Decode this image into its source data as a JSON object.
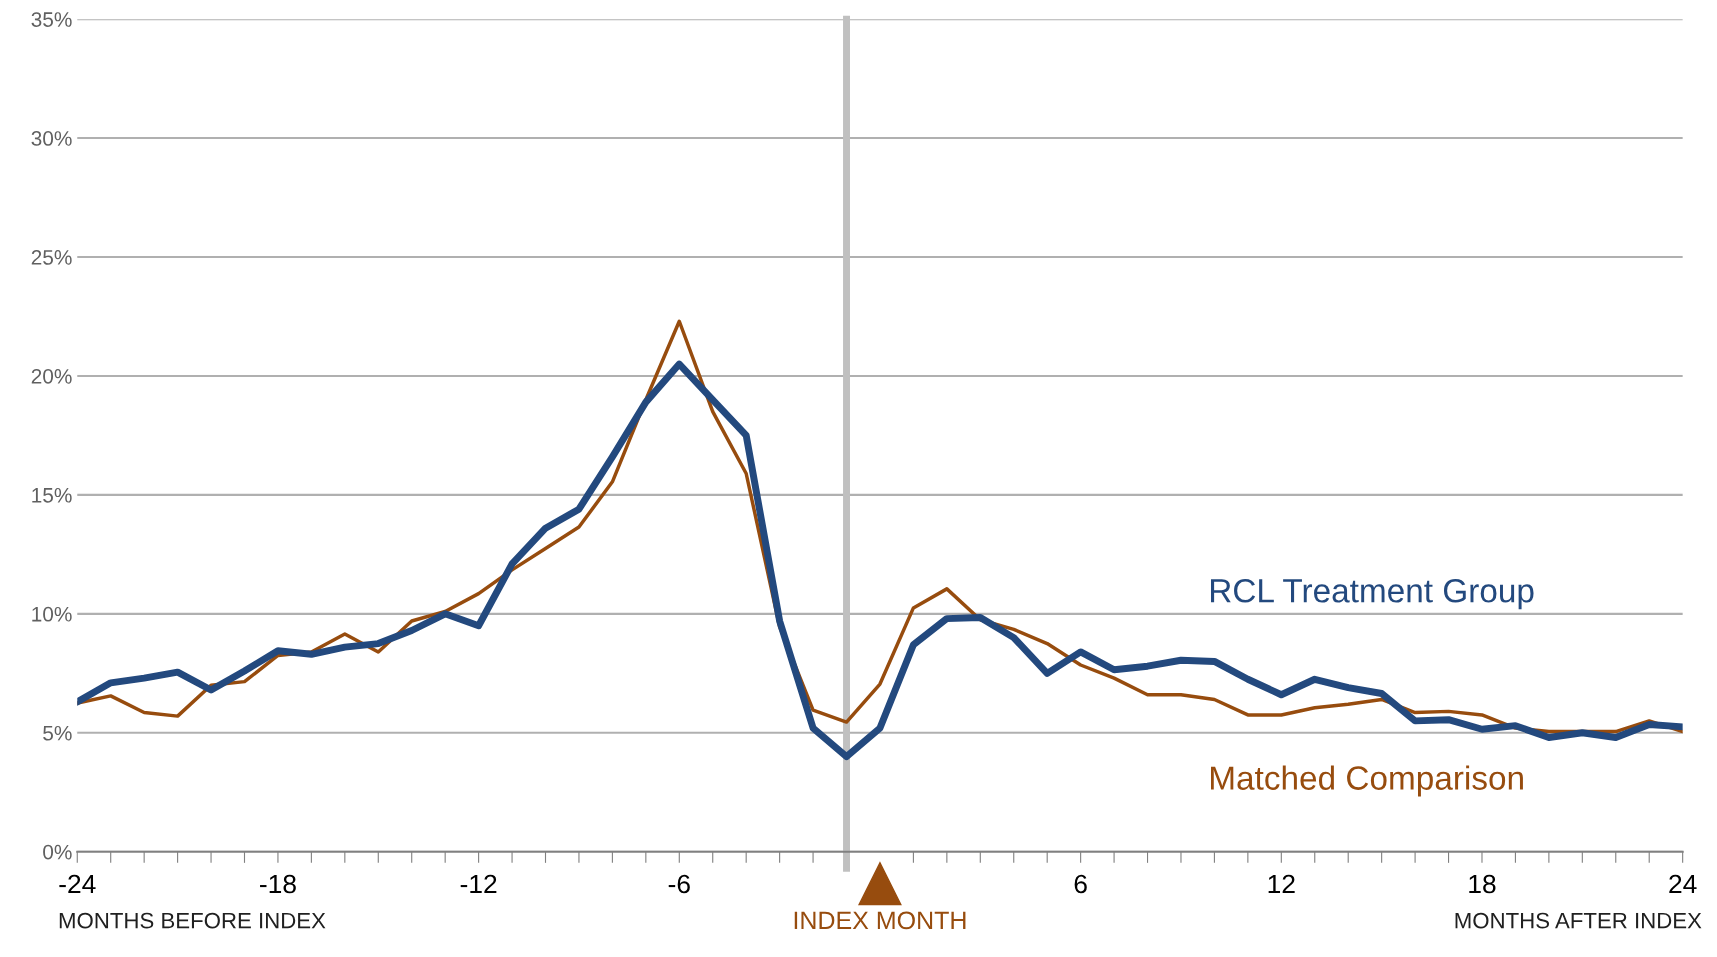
{
  "chart_data": {
    "type": "line",
    "x": [
      -24,
      -23,
      -22,
      -21,
      -20,
      -19,
      -18,
      -17,
      -16,
      -15,
      -14,
      -13,
      -12,
      -11,
      -10,
      -9,
      -8,
      -7,
      -6,
      -5,
      -4,
      -3,
      -2,
      -1,
      0,
      1,
      2,
      3,
      4,
      5,
      6,
      7,
      8,
      9,
      10,
      11,
      12,
      13,
      14,
      15,
      16,
      17,
      18,
      19,
      20,
      21,
      22,
      23,
      24
    ],
    "series": [
      {
        "name": "Matched Comparison",
        "color": "#974c0e",
        "values": [
          6.25,
          6.55,
          5.85,
          5.7,
          7.0,
          7.15,
          8.25,
          8.4,
          9.15,
          8.4,
          9.7,
          10.1,
          10.85,
          11.85,
          12.75,
          13.65,
          15.55,
          19.0,
          22.3,
          18.5,
          15.9,
          9.45,
          5.95,
          5.45,
          7.05,
          10.25,
          11.05,
          9.75,
          9.35,
          8.75,
          7.85,
          7.3,
          6.6,
          6.6,
          6.4,
          5.75,
          5.75,
          6.05,
          6.2,
          6.4,
          5.85,
          5.9,
          5.75,
          5.2,
          5.05,
          5.05,
          5.05,
          5.5,
          5.05
        ]
      },
      {
        "name": "RCL Treatment Group",
        "color": "#23497e",
        "values": [
          6.3,
          7.1,
          7.3,
          7.55,
          6.8,
          7.6,
          8.45,
          8.3,
          8.6,
          8.75,
          9.3,
          10.0,
          9.5,
          12.1,
          13.6,
          14.4,
          16.6,
          18.9,
          20.5,
          19.0,
          17.5,
          9.7,
          5.2,
          4.0,
          5.2,
          8.7,
          9.8,
          9.85,
          9.0,
          7.5,
          8.4,
          7.65,
          7.8,
          8.05,
          8.0,
          7.25,
          6.6,
          7.25,
          6.9,
          6.65,
          5.5,
          5.55,
          5.15,
          5.3,
          4.8,
          5.0,
          4.8,
          5.35,
          5.25
        ]
      }
    ],
    "xlim": [
      -24,
      24
    ],
    "xticks": [
      -24,
      {
        "value": -23,
        "label": null
      },
      {
        "value": -22,
        "label": null
      },
      {
        "value": -21,
        "label": null
      },
      {
        "value": -20,
        "label": null
      },
      {
        "value": -19,
        "label": null
      },
      -18,
      {
        "value": -17,
        "label": null
      },
      {
        "value": -16,
        "label": null
      },
      {
        "value": -15,
        "label": null
      },
      {
        "value": -14,
        "label": null
      },
      {
        "value": -13,
        "label": null
      },
      -12,
      {
        "value": -11,
        "label": null
      },
      {
        "value": -10,
        "label": null
      },
      {
        "value": -9,
        "label": null
      },
      {
        "value": -8,
        "label": null
      },
      {
        "value": -7,
        "label": null
      },
      -6,
      {
        "value": -5,
        "label": null
      },
      {
        "value": -4,
        "label": null
      },
      {
        "value": -3,
        "label": null
      },
      {
        "value": -2,
        "label": null
      },
      {
        "value": 1,
        "label": null
      },
      {
        "value": 2,
        "label": null
      },
      {
        "value": 3,
        "label": null
      },
      {
        "value": 4,
        "label": null
      },
      {
        "value": 5,
        "label": null
      },
      6,
      {
        "value": 7,
        "label": null
      },
      {
        "value": 8,
        "label": null
      },
      {
        "value": 9,
        "label": null
      },
      {
        "value": 10,
        "label": null
      },
      {
        "value": 11,
        "label": null
      },
      12,
      {
        "value": 13,
        "label": null
      },
      {
        "value": 14,
        "label": null
      },
      {
        "value": 15,
        "label": null
      },
      {
        "value": 16,
        "label": null
      },
      {
        "value": 17,
        "label": null
      },
      18,
      {
        "value": 19,
        "label": null
      },
      {
        "value": 20,
        "label": null
      },
      {
        "value": 21,
        "label": null
      },
      {
        "value": 22,
        "label": null
      },
      {
        "value": 23,
        "label": null
      },
      24
    ],
    "ylim": [
      0,
      35
    ],
    "yticks": [
      {
        "value": 0,
        "label": "0%"
      },
      {
        "value": 5,
        "label": "5%"
      },
      {
        "value": 10,
        "label": "10%"
      },
      {
        "value": 15,
        "label": "15%"
      },
      {
        "value": 20,
        "label": "20%"
      },
      {
        "value": 25,
        "label": "25%"
      },
      {
        "value": 30,
        "label": "30%"
      },
      {
        "value": 35,
        "label": "35%"
      }
    ],
    "grid": "y",
    "legend": false,
    "marker": "none",
    "line_style": "solid",
    "ref_lines": [
      {
        "axis": "x",
        "value": -1,
        "color": "#c0c0c0",
        "line_style": "solid"
      }
    ],
    "annotations": [
      "MONTHS BEFORE INDEX",
      "INDEX MONTH",
      "MONTHS AFTER INDEX"
    ]
  }
}
